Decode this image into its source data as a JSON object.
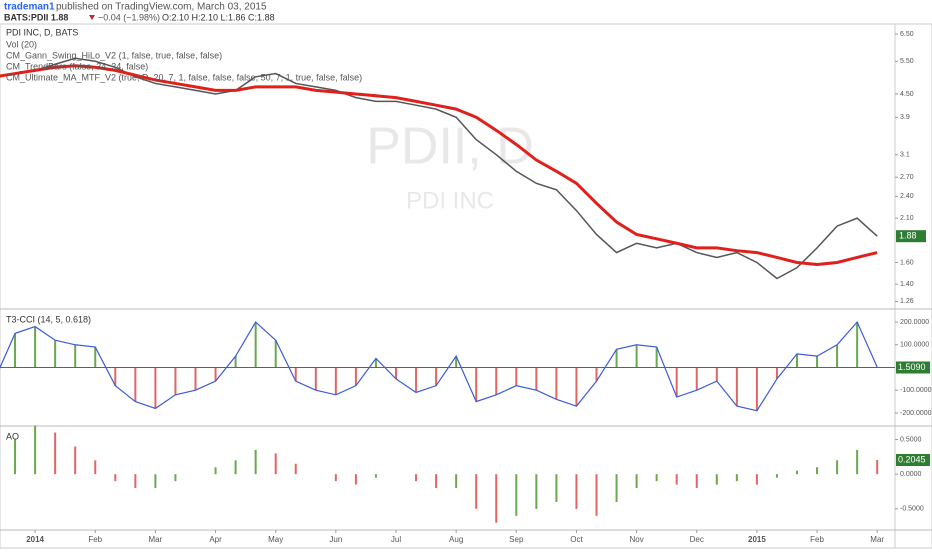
{
  "header": {
    "user": "trademan1",
    "published": "published on TradingView.com, March 03, 2015",
    "symbol": "BATS:PDII 1.88",
    "change": "−0.04 (−1.98%)",
    "ohlc": "O:2.10 H:2.10 L:1.86 C:1.88"
  },
  "chart_data": [
    {
      "type": "line",
      "title": "PDI INC, D, BATS",
      "watermark": "PDII, D",
      "watermark_name": "PDI INC",
      "legend": [
        "Vol (20)",
        "CM_Gann_Swing_HiLo_V2 (1, false, true, false, false)",
        "CM_TrendBars (false, 34, 34, false)",
        "CM_Ultimate_MA_MTF_V2 (true, D, 20, 7, 1, false, false, false, 50, 7, 1, true, false, false)"
      ],
      "categories": [
        null,
        null,
        "2014",
        null,
        null,
        "Feb",
        null,
        null,
        "Mar",
        null,
        null,
        "Apr",
        null,
        null,
        "May",
        null,
        null,
        "Jun",
        null,
        null,
        "Jul",
        null,
        null,
        "Aug",
        null,
        null,
        "Sep",
        null,
        null,
        "Oct",
        null,
        null,
        "Nov",
        null,
        null,
        "Dec",
        null,
        null,
        "2015",
        null,
        null,
        "Feb",
        null,
        null,
        "Mar"
      ],
      "log_scale": true,
      "ylim": [
        1.21,
        6.87
      ],
      "yticks": [
        {
          "value": 6.5,
          "label": "6.50"
        },
        {
          "value": 5.5,
          "label": "5.50"
        },
        {
          "value": 4.5,
          "label": "4.50"
        },
        3.9,
        3.1,
        {
          "value": 2.7,
          "label": "2.70"
        },
        {
          "value": 2.4,
          "label": "2.40"
        },
        {
          "value": 2.1,
          "label": "2.10"
        },
        {
          "value": 1.6,
          "label": "1.60"
        },
        {
          "value": 1.4,
          "label": "1.40"
        },
        1.26
      ],
      "series": [
        {
          "name": "Price",
          "color": "#555555",
          "values": [
            5.0,
            5.1,
            5.2,
            5.4,
            5.6,
            5.5,
            5.3,
            5.0,
            4.8,
            4.7,
            4.6,
            4.5,
            4.6,
            5.0,
            5.1,
            4.8,
            4.7,
            4.6,
            4.4,
            4.3,
            4.3,
            4.2,
            4.1,
            3.9,
            3.4,
            3.1,
            2.8,
            2.6,
            2.5,
            2.2,
            1.9,
            1.7,
            1.8,
            1.75,
            1.8,
            1.7,
            1.65,
            1.7,
            1.6,
            1.45,
            1.55,
            1.75,
            2.0,
            2.1,
            1.88
          ]
        },
        {
          "name": "MA",
          "color": "#e0201b",
          "values": [
            5.0,
            5.1,
            5.2,
            5.3,
            5.35,
            5.3,
            5.2,
            5.05,
            4.9,
            4.8,
            4.7,
            4.6,
            4.6,
            4.7,
            4.7,
            4.7,
            4.6,
            4.55,
            4.5,
            4.45,
            4.4,
            4.3,
            4.2,
            4.1,
            3.9,
            3.6,
            3.3,
            3.0,
            2.8,
            2.6,
            2.3,
            2.05,
            1.9,
            1.85,
            1.8,
            1.75,
            1.75,
            1.72,
            1.7,
            1.65,
            1.6,
            1.58,
            1.6,
            1.65,
            1.7
          ]
        }
      ]
    },
    {
      "type": "bar",
      "title": "T3-CCI (14, 5, 0.618)",
      "ylim": [
        -253,
        253
      ],
      "yticks": [
        {
          "value": 200,
          "label": "200.0000"
        },
        {
          "value": 100,
          "label": "100.0000"
        },
        {
          "value": -100,
          "label": "-100.0000"
        },
        {
          "value": -200,
          "label": "-200.0000"
        }
      ],
      "last_label": "1.5090",
      "line_color": "#3b5bdb",
      "up_color": "#6aa84f",
      "down_color": "#e06666",
      "values": [
        -50,
        150,
        180,
        120,
        100,
        90,
        -80,
        -150,
        -180,
        -120,
        -100,
        -60,
        50,
        200,
        120,
        -60,
        -100,
        -120,
        -80,
        40,
        -50,
        -110,
        -80,
        50,
        -150,
        -120,
        -80,
        -100,
        -140,
        -170,
        -60,
        80,
        100,
        90,
        -130,
        -100,
        -60,
        -170,
        -190,
        -50,
        60,
        50,
        100,
        200,
        1.509
      ]
    },
    {
      "type": "bar",
      "title": "AO",
      "ylim": [
        -0.79,
        0.68
      ],
      "yticks": [
        {
          "value": 0.5,
          "label": "0.5000"
        },
        {
          "value": 0,
          "label": "0.0000"
        },
        {
          "value": -0.5,
          "label": "-0.5000"
        }
      ],
      "up_color": "#6aa84f",
      "down_color": "#e06666",
      "values": [
        0.1,
        0.5,
        0.7,
        0.6,
        0.4,
        0.2,
        -0.1,
        -0.2,
        -0.2,
        -0.1,
        0.0,
        0.1,
        0.2,
        0.35,
        0.3,
        0.15,
        0.0,
        -0.1,
        -0.15,
        -0.05,
        0.0,
        -0.1,
        -0.2,
        -0.2,
        -0.5,
        -0.7,
        -0.6,
        -0.5,
        -0.4,
        -0.5,
        -0.6,
        -0.4,
        -0.2,
        -0.1,
        -0.15,
        -0.2,
        -0.15,
        -0.1,
        -0.15,
        -0.05,
        0.05,
        0.1,
        0.2,
        0.35,
        0.2045
      ]
    }
  ]
}
